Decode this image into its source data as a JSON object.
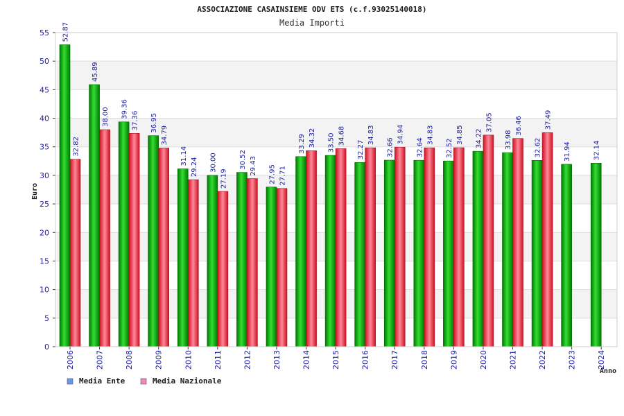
{
  "chart_data": {
    "type": "bar",
    "title": "ASSOCIAZIONE CASAINSIEME ODV ETS (c.f.93025140018)",
    "subtitle": "Media Importi",
    "ylabel": "Euro",
    "xlabel": "Anno",
    "ylim": [
      0,
      55
    ],
    "yticks": [
      0,
      5,
      10,
      15,
      20,
      25,
      30,
      35,
      40,
      45,
      50,
      55
    ],
    "grid": true,
    "legend_position": "bottom-left",
    "categories": [
      "2006",
      "2007",
      "2008",
      "2009",
      "2010",
      "2011",
      "2012",
      "2013",
      "2014",
      "2015",
      "2016",
      "2017",
      "2018",
      "2019",
      "2020",
      "2021",
      "2022",
      "2023",
      "2024"
    ],
    "series": [
      {
        "name": "Media Ente",
        "values": [
          52.87,
          45.89,
          39.36,
          36.95,
          31.14,
          30.0,
          30.52,
          27.95,
          33.29,
          33.5,
          32.27,
          32.66,
          32.64,
          32.52,
          34.22,
          33.98,
          32.62,
          31.94,
          32.14
        ],
        "labels": [
          "52.87",
          "45.89",
          "39.36",
          "36.95",
          "31.14",
          "30.00",
          "30.52",
          "27.95",
          "33.29",
          "33.50",
          "32.27",
          "32.66",
          "32.64",
          "32.52",
          "34.22",
          "33.98",
          "32.62",
          "31.94",
          "32.14"
        ],
        "color": "#22bb22",
        "legend_color": "#6699ee"
      },
      {
        "name": "Media Nazionale",
        "values": [
          32.82,
          38.0,
          37.36,
          34.79,
          29.24,
          27.19,
          29.43,
          27.71,
          34.32,
          34.68,
          34.83,
          34.94,
          34.83,
          34.85,
          37.05,
          36.46,
          37.49,
          null,
          null
        ],
        "labels": [
          "32.82",
          "38.00",
          "37.36",
          "34.79",
          "29.24",
          "27.19",
          "29.43",
          "27.71",
          "34.32",
          "34.68",
          "34.83",
          "34.94",
          "34.83",
          "34.85",
          "37.05",
          "36.46",
          "37.49",
          null,
          null
        ],
        "color": "#ee3344",
        "legend_color": "#ee88bb"
      }
    ]
  }
}
